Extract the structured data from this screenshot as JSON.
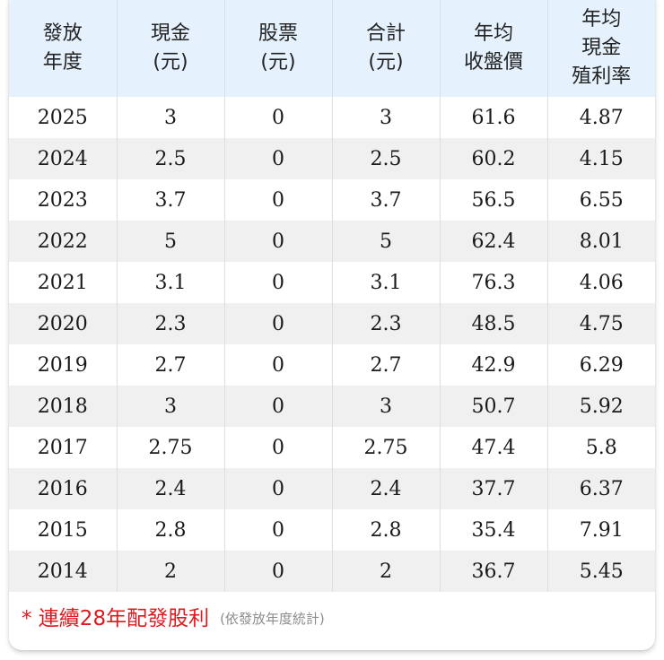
{
  "table": {
    "headers": [
      {
        "lines": [
          "發放",
          "年度"
        ]
      },
      {
        "lines": [
          "現金",
          "(元)"
        ]
      },
      {
        "lines": [
          "股票",
          "(元)"
        ]
      },
      {
        "lines": [
          "合計",
          "(元)"
        ]
      },
      {
        "lines": [
          "年均",
          "收盤價"
        ]
      },
      {
        "lines": [
          "年均",
          "現金",
          "殖利率"
        ]
      }
    ],
    "rows": [
      [
        "2025",
        "3",
        "0",
        "3",
        "61.6",
        "4.87"
      ],
      [
        "2024",
        "2.5",
        "0",
        "2.5",
        "60.2",
        "4.15"
      ],
      [
        "2023",
        "3.7",
        "0",
        "3.7",
        "56.5",
        "6.55"
      ],
      [
        "2022",
        "5",
        "0",
        "5",
        "62.4",
        "8.01"
      ],
      [
        "2021",
        "3.1",
        "0",
        "3.1",
        "76.3",
        "4.06"
      ],
      [
        "2020",
        "2.3",
        "0",
        "2.3",
        "48.5",
        "4.75"
      ],
      [
        "2019",
        "2.7",
        "0",
        "2.7",
        "42.9",
        "6.29"
      ],
      [
        "2018",
        "3",
        "0",
        "3",
        "50.7",
        "5.92"
      ],
      [
        "2017",
        "2.75",
        "0",
        "2.75",
        "47.4",
        "5.8"
      ],
      [
        "2016",
        "2.4",
        "0",
        "2.4",
        "37.7",
        "6.37"
      ],
      [
        "2015",
        "2.8",
        "0",
        "2.8",
        "35.4",
        "7.91"
      ],
      [
        "2014",
        "2",
        "0",
        "2",
        "36.7",
        "5.45"
      ]
    ]
  },
  "footer": {
    "main_note": "* 連續28年配發股利",
    "sub_note": "(依發放年度統計)"
  },
  "colors": {
    "header_bg": "#e5f1fc",
    "stripe_bg": "#f0f0f0",
    "note_red": "#e0191e",
    "note_gray": "#8c8c8c"
  }
}
